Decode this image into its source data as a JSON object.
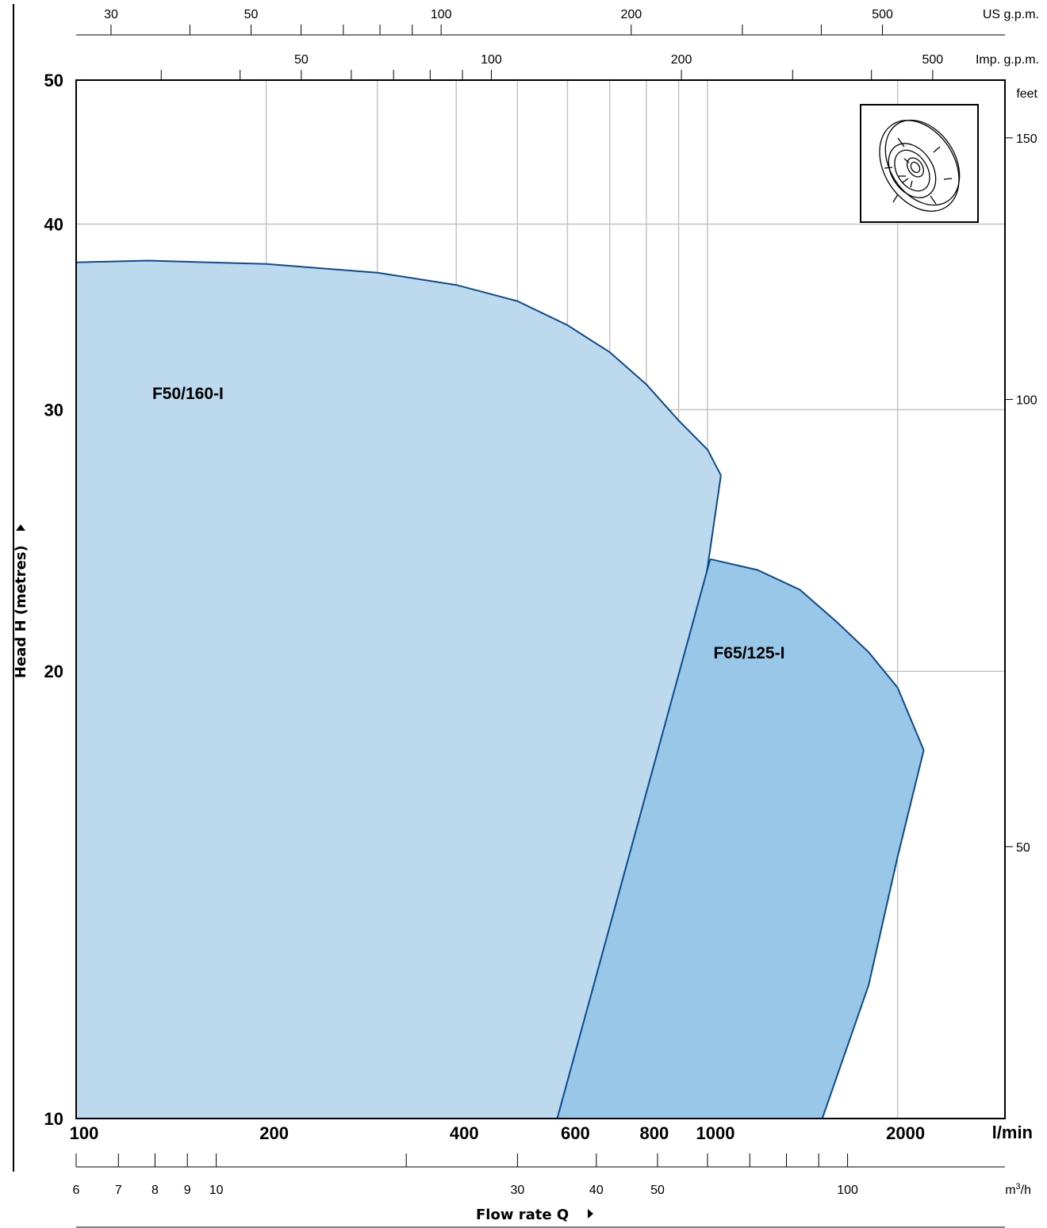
{
  "chart_data": {
    "type": "area",
    "xscale": "log",
    "yscale": "log",
    "xlim": [
      100,
      2400
    ],
    "ylim": [
      10,
      50
    ],
    "grid": true,
    "xlabel": "Flow rate  Q",
    "ylabel": "Head H (metres)",
    "x_unit": "l/min",
    "xticks": [
      100,
      200,
      400,
      600,
      800,
      1000,
      2000
    ],
    "x_gridlines": [
      200,
      300,
      400,
      500,
      600,
      700,
      800,
      900,
      1000,
      2000
    ],
    "yticks": [
      10,
      20,
      30,
      40,
      50
    ],
    "secondary_axes": {
      "us_gpm": {
        "unit": "US g.p.m.",
        "labels": [
          30,
          50,
          100,
          200,
          500
        ],
        "ticks": [
          30,
          40,
          50,
          60,
          70,
          80,
          90,
          100,
          200,
          300,
          400,
          500
        ]
      },
      "imp_gpm": {
        "unit": "Imp. g.p.m.",
        "labels": [
          50,
          100,
          200,
          500
        ],
        "ticks": [
          30,
          40,
          50,
          60,
          70,
          80,
          90,
          100,
          200,
          300,
          400,
          500
        ]
      },
      "feet": {
        "unit": "feet",
        "labels": [
          50,
          100,
          150
        ]
      },
      "m3h": {
        "unit": "m³/h",
        "unit_base": "m",
        "unit_sup": "3",
        "unit_tail": "/h",
        "labels": [
          6,
          7,
          8,
          9,
          10,
          30,
          40,
          50,
          100
        ],
        "ticks": [
          6,
          7,
          8,
          9,
          10,
          20,
          30,
          40,
          50,
          60,
          70,
          80,
          90,
          100,
          200
        ]
      }
    },
    "series": [
      {
        "name": "F50/160-I",
        "color": "#bcd9ee",
        "outline": "#0d4a8c",
        "curve": [
          [
            100,
            37.7
          ],
          [
            130,
            37.8
          ],
          [
            200,
            37.6
          ],
          [
            300,
            37.1
          ],
          [
            400,
            36.4
          ],
          [
            500,
            35.5
          ],
          [
            600,
            34.2
          ],
          [
            700,
            32.8
          ],
          [
            800,
            31.2
          ],
          [
            900,
            29.5
          ],
          [
            1000,
            28.2
          ],
          [
            1050,
            27.1
          ]
        ],
        "lower_edge": [
          [
            1050,
            27.1
          ],
          [
            1000,
            23.5
          ],
          [
            925,
            19.5
          ],
          [
            700,
            12.3
          ],
          [
            578,
            10.0
          ]
        ]
      },
      {
        "name": "F65/125-I",
        "color": "#98c7e7",
        "outline": "#0d4a8c",
        "curve": [
          [
            1010,
            23.8
          ],
          [
            1200,
            23.4
          ],
          [
            1400,
            22.7
          ],
          [
            1600,
            21.6
          ],
          [
            1800,
            20.6
          ],
          [
            2000,
            19.5
          ],
          [
            2200,
            17.7
          ]
        ],
        "lower_edge": [
          [
            2200,
            17.7
          ],
          [
            2000,
            15.0
          ],
          [
            1800,
            12.3
          ],
          [
            1520,
            10.0
          ],
          [
            578,
            10.0
          ],
          [
            1010,
            23.8
          ]
        ]
      }
    ]
  }
}
